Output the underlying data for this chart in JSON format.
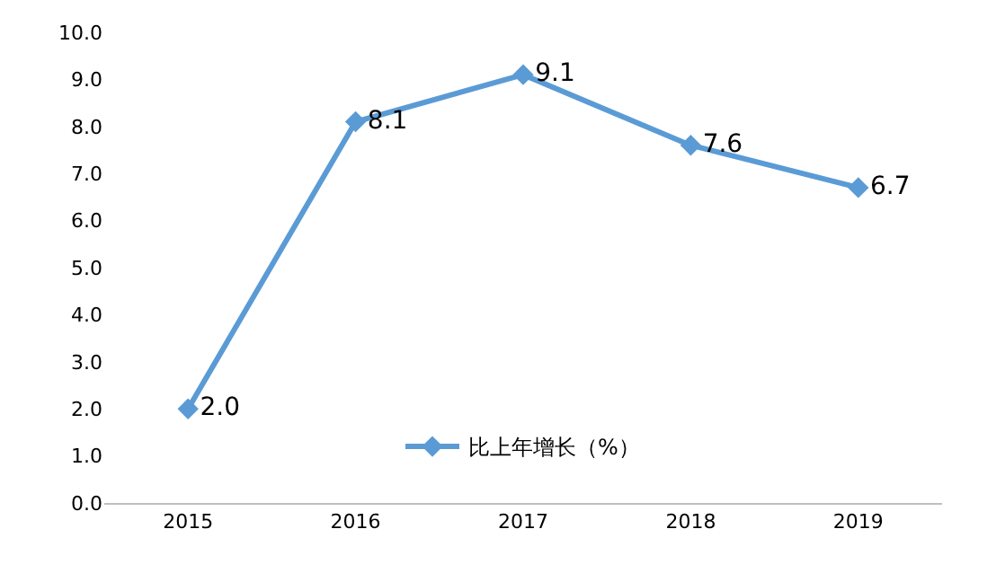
{
  "chart_data": {
    "type": "line",
    "categories": [
      "2015",
      "2016",
      "2017",
      "2018",
      "2019"
    ],
    "series": [
      {
        "name": "比上年增长（%）",
        "color": "#5b9bd5",
        "values": [
          2.0,
          8.1,
          9.1,
          7.6,
          6.7
        ],
        "value_labels": [
          "2.0",
          "8.1",
          "9.1",
          "7.6",
          "6.7"
        ]
      }
    ],
    "ylim": [
      0,
      10
    ],
    "yticks": [
      {
        "value": 0,
        "label": "0.0"
      },
      {
        "value": 1,
        "label": "1.0"
      },
      {
        "value": 2,
        "label": "2.0"
      },
      {
        "value": 3,
        "label": "3.0"
      },
      {
        "value": 4,
        "label": "4.0"
      },
      {
        "value": 5,
        "label": "5.0"
      },
      {
        "value": 6,
        "label": "6.0"
      },
      {
        "value": 7,
        "label": "7.0"
      },
      {
        "value": 8,
        "label": "8.0"
      },
      {
        "value": 9,
        "label": "9.0"
      },
      {
        "value": 10,
        "label": "10.0"
      }
    ],
    "marker": "diamond",
    "line_style": "solid",
    "legend": "bottom"
  }
}
